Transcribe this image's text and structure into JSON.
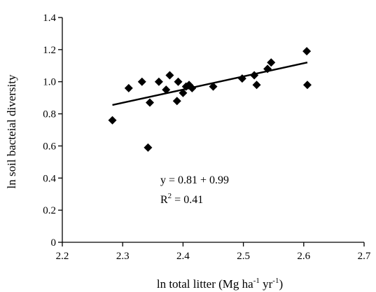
{
  "chart_data": {
    "type": "scatter",
    "xlabel": "ln total litter (Mg ha",
    "xlabel_sup1": "-1",
    "xlabel_mid": " yr",
    "xlabel_sup2": "-1",
    "xlabel_end": ")",
    "ylabel": "ln soil bacteial diversity",
    "xlim": [
      2.2,
      2.7
    ],
    "ylim": [
      0,
      1.4
    ],
    "x_ticks": [
      "2.2",
      "2.3",
      "2.4",
      "2.5",
      "2.6",
      "2.7"
    ],
    "y_ticks": [
      "0",
      "0.2",
      "0.4",
      "0.6",
      "0.8",
      "1.0",
      "1.2",
      "1.4"
    ],
    "grid": false,
    "marker": "diamond",
    "marker_color": "#000000",
    "points": [
      {
        "x": 2.283,
        "y": 0.76
      },
      {
        "x": 2.31,
        "y": 0.96
      },
      {
        "x": 2.332,
        "y": 1.0
      },
      {
        "x": 2.342,
        "y": 0.59
      },
      {
        "x": 2.345,
        "y": 0.87
      },
      {
        "x": 2.36,
        "y": 1.0
      },
      {
        "x": 2.372,
        "y": 0.95
      },
      {
        "x": 2.378,
        "y": 1.04
      },
      {
        "x": 2.39,
        "y": 0.88
      },
      {
        "x": 2.392,
        "y": 1.0
      },
      {
        "x": 2.4,
        "y": 0.93
      },
      {
        "x": 2.405,
        "y": 0.97
      },
      {
        "x": 2.41,
        "y": 0.98
      },
      {
        "x": 2.415,
        "y": 0.96
      },
      {
        "x": 2.45,
        "y": 0.97
      },
      {
        "x": 2.498,
        "y": 1.02
      },
      {
        "x": 2.518,
        "y": 1.04
      },
      {
        "x": 2.522,
        "y": 0.98
      },
      {
        "x": 2.54,
        "y": 1.08
      },
      {
        "x": 2.546,
        "y": 1.12
      },
      {
        "x": 2.605,
        "y": 1.19
      },
      {
        "x": 2.606,
        "y": 0.98
      }
    ],
    "trendline": {
      "x": [
        2.283,
        2.606
      ],
      "y": [
        0.855,
        1.12
      ]
    },
    "equation_text": "y = 0.81 +  0.99",
    "r2_prefix": "R",
    "r2_sup": "2",
    "r2_value": " = 0.41"
  }
}
